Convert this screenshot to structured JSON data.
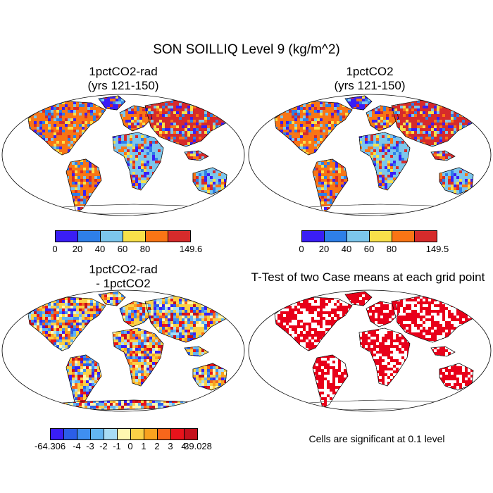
{
  "main_title": "SON SOILLIQ Level 9 (kg/m^2)",
  "panels": [
    {
      "title_line1": "1pctCO2-rad",
      "title_line2": "(yrs 121-150)"
    },
    {
      "title_line1": "1pctCO2",
      "title_line2": "(yrs 121-150)"
    },
    {
      "title_line1": "1pctCO2-rad",
      "title_line2": "- 1pctCO2"
    },
    {
      "title_line1": "T-Test of two Case means at each grid point",
      "title_line2": ""
    }
  ],
  "colorbar_abs_colors": [
    "#3a1ef5",
    "#2e7fe8",
    "#7cc6ec",
    "#f8e04a",
    "#f97515",
    "#d62b2b"
  ],
  "colorbar1_labels": [
    "0",
    "20",
    "40",
    "60",
    "80",
    "149.6"
  ],
  "colorbar2_labels": [
    "0",
    "20",
    "40",
    "60",
    "80",
    "149.5"
  ],
  "colorbar_diff_colors": [
    "#3a1ef5",
    "#2b5ee8",
    "#3f8ff0",
    "#63b5f2",
    "#a8dcf5",
    "#fff7b0",
    "#fbd147",
    "#f9a21f",
    "#f7661b",
    "#e8131b",
    "#c4101c"
  ],
  "colorbar3_labels": [
    "-64.306",
    "-4",
    "-3",
    "-2",
    "-1",
    "0",
    "1",
    "2",
    "3",
    "4",
    "39.028"
  ],
  "significance_note": "Cells are significant at 0.1 level"
}
